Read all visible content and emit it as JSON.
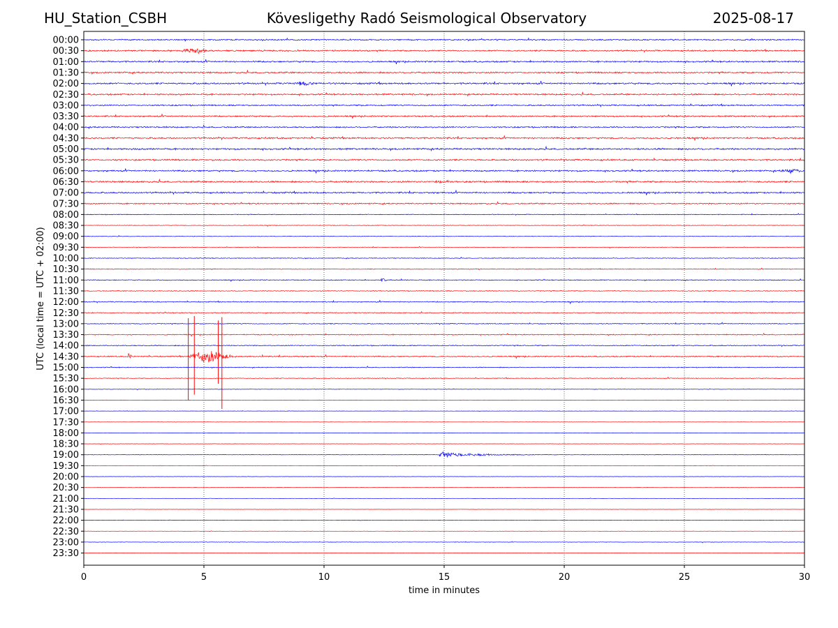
{
  "header": {
    "station": "HU_Station_CSBH",
    "title": "Kövesligethy Radó Seismological Observatory",
    "date": "2025-08-17"
  },
  "chart_data": {
    "type": "line",
    "title": "Kövesligethy Radó Seismological Observatory",
    "xlabel": "time in minutes",
    "ylabel": "UTC (local time = UTC + 02:00)",
    "xlim": [
      0,
      30
    ],
    "x_ticks": [
      0,
      5,
      10,
      15,
      20,
      25,
      30
    ],
    "vertical_grid": [
      5,
      10,
      15,
      20,
      25
    ],
    "grid": "dotted vertical",
    "trace_colors": [
      "#0000ff",
      "#ff0000"
    ],
    "row_labels": [
      "00:00",
      "00:30",
      "01:00",
      "01:30",
      "02:00",
      "02:30",
      "03:00",
      "03:30",
      "04:00",
      "04:30",
      "05:00",
      "05:30",
      "06:00",
      "06:30",
      "07:00",
      "07:30",
      "08:00",
      "08:30",
      "09:00",
      "09:30",
      "10:00",
      "10:30",
      "11:00",
      "11:30",
      "12:00",
      "12:30",
      "13:00",
      "13:30",
      "14:00",
      "14:30",
      "15:00",
      "15:30",
      "16:00",
      "16:30",
      "17:00",
      "17:30",
      "18:00",
      "18:30",
      "19:00",
      "19:30",
      "20:00",
      "20:30",
      "21:00",
      "21:30",
      "22:00",
      "22:30",
      "23:00",
      "23:30"
    ],
    "noise_level": [
      0.45,
      0.5,
      0.55,
      0.55,
      0.6,
      0.55,
      0.5,
      0.5,
      0.5,
      0.55,
      0.6,
      0.55,
      0.55,
      0.6,
      0.55,
      0.45,
      0.25,
      0.2,
      0.2,
      0.2,
      0.25,
      0.25,
      0.3,
      0.3,
      0.35,
      0.3,
      0.3,
      0.35,
      0.35,
      0.4,
      0.3,
      0.25,
      0.15,
      0.15,
      0.1,
      0.1,
      0.1,
      0.1,
      0.15,
      0.1,
      0.1,
      0.1,
      0.1,
      0.1,
      0.1,
      0.1,
      0.15,
      0.1
    ],
    "events": [
      {
        "row": "00:30",
        "start_min": 4.0,
        "end_min": 5.2,
        "amplitude": 1.6
      },
      {
        "row": "02:00",
        "start_min": 8.7,
        "end_min": 9.6,
        "amplitude": 1.1
      },
      {
        "row": "06:00",
        "start_min": 29.0,
        "end_min": 30.0,
        "amplitude": 1.3
      },
      {
        "row": "06:30",
        "start_min": 14.6,
        "end_min": 15.1,
        "amplitude": 1.2
      },
      {
        "row": "11:00",
        "start_min": 12.3,
        "end_min": 12.6,
        "amplitude": 1.2
      },
      {
        "row": "14:30",
        "start_min": 1.8,
        "end_min": 2.0,
        "amplitude": 3.0
      },
      {
        "row": "14:30",
        "start_min": 4.3,
        "end_min": 6.2,
        "amplitude": 4.0
      },
      {
        "row": "19:00",
        "start_min": 14.8,
        "end_min": 20.5,
        "amplitude": 2.2
      }
    ],
    "spikes": [
      {
        "row": "14:30",
        "at_min": 4.35,
        "up": 3.5,
        "down": 4.0
      },
      {
        "row": "14:30",
        "at_min": 4.6,
        "up": 3.7,
        "down": 3.5
      },
      {
        "row": "14:30",
        "at_min": 5.6,
        "up": 3.3,
        "down": 2.5
      },
      {
        "row": "14:30",
        "at_min": 5.75,
        "up": 3.6,
        "down": 4.8
      }
    ]
  }
}
